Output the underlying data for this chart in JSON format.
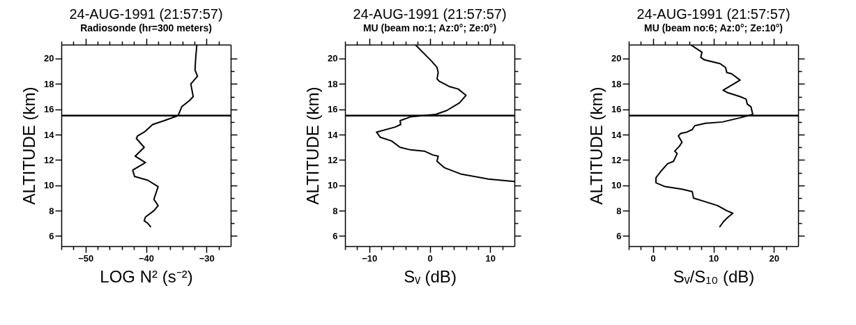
{
  "chart_data": [
    {
      "type": "line",
      "title": "24-AUG-1991 (21:57:57)",
      "subtitle": "Radiosonde (hr=300 meters)",
      "xlabel": "LOG N² (s⁻²)",
      "ylabel": "ALTITUDE (km)",
      "xlim": [
        -54,
        -26
      ],
      "ylim": [
        5.2,
        21.1
      ],
      "xticks": [
        {
          "value": -54,
          "label": null
        },
        {
          "value": -52,
          "label": null
        },
        -50,
        {
          "value": -48,
          "label": null
        },
        {
          "value": -46,
          "label": null
        },
        {
          "value": -44,
          "label": null
        },
        {
          "value": -42,
          "label": null
        },
        -40,
        {
          "value": -38,
          "label": null
        },
        {
          "value": -36,
          "label": null
        },
        {
          "value": -34,
          "label": null
        },
        {
          "value": -32,
          "label": null
        },
        -30,
        {
          "value": -28,
          "label": null
        }
      ],
      "yticks": [
        6,
        {
          "value": 7,
          "label": null
        },
        8,
        {
          "value": 9,
          "label": null
        },
        10,
        {
          "value": 11,
          "label": null
        },
        12,
        {
          "value": 13,
          "label": null
        },
        14,
        {
          "value": 15,
          "label": null
        },
        16,
        {
          "value": 17,
          "label": null
        },
        18,
        {
          "value": 19,
          "label": null
        },
        20
      ],
      "series": [
        {
          "color": "#000000",
          "x": [
            -31.6,
            -31.8,
            -31.9,
            -31.5,
            -32.6,
            -32.2,
            -32.8,
            -34.1,
            -34.7,
            -37.0,
            -38.9,
            -40.3,
            -41.4,
            -41.6,
            -40.3,
            -41.8,
            -40.1,
            -42.2,
            -41.9,
            -39.7,
            -38.0,
            -38.7,
            -38.0,
            -38.7,
            -40.1,
            -40.3,
            -39.7,
            -39.2
          ],
          "values": [
            21.1,
            20.0,
            19.1,
            18.6,
            18.0,
            17.0,
            16.7,
            16.2,
            15.5,
            15.1,
            14.8,
            14.2,
            13.9,
            13.7,
            13.0,
            12.3,
            11.8,
            11.2,
            10.7,
            10.4,
            9.9,
            8.9,
            8.4,
            8.0,
            7.5,
            7.2,
            7.0,
            6.7
          ]
        }
      ],
      "ref_lines": [
        {
          "axis": "y",
          "value": 15.5,
          "color": "#000000"
        }
      ]
    },
    {
      "type": "line",
      "title": "24-AUG-1991 (21:57:57)",
      "subtitle": "MU (beam no:1; Az:0°; Ze:0°)",
      "xlabel": "Sᵥ (dB)",
      "ylabel": "ALTITUDE (km)",
      "xlim": [
        -14,
        14
      ],
      "ylim": [
        5.2,
        21.1
      ],
      "xticks": [
        {
          "value": -14,
          "label": null
        },
        {
          "value": -12,
          "label": null
        },
        -10,
        {
          "value": -8,
          "label": null
        },
        {
          "value": -6,
          "label": null
        },
        {
          "value": -4,
          "label": null
        },
        {
          "value": -2,
          "label": null
        },
        0,
        {
          "value": 2,
          "label": null
        },
        {
          "value": 4,
          "label": null
        },
        {
          "value": 6,
          "label": null
        },
        {
          "value": 8,
          "label": null
        },
        10,
        {
          "value": 12,
          "label": null
        }
      ],
      "yticks": [
        6,
        {
          "value": 7,
          "label": null
        },
        8,
        {
          "value": 9,
          "label": null
        },
        10,
        {
          "value": 11,
          "label": null
        },
        12,
        {
          "value": 13,
          "label": null
        },
        14,
        {
          "value": 15,
          "label": null
        },
        16,
        {
          "value": 17,
          "label": null
        },
        18,
        {
          "value": 19,
          "label": null
        },
        20
      ],
      "series": [
        {
          "color": "#000000",
          "x": [
            -2.4,
            0.3,
            1.2,
            1.4,
            1.2,
            1.6,
            3.2,
            4.7,
            6.0,
            4.9,
            2.8,
            1.0,
            -3.2,
            -4.9,
            -4.8,
            -5.7,
            -8.8,
            -8.2,
            -6.3,
            -4.9,
            -3.2,
            -0.9,
            0.5,
            1.4,
            1.2,
            2.4,
            5.1,
            9.7,
            14.0
          ],
          "values": [
            21.1,
            19.8,
            19.3,
            18.9,
            18.4,
            18.2,
            17.8,
            17.6,
            17.1,
            16.5,
            15.9,
            15.6,
            15.4,
            15.1,
            14.8,
            14.6,
            14.2,
            13.8,
            13.5,
            13.0,
            12.8,
            12.7,
            12.4,
            12.3,
            11.9,
            11.4,
            10.9,
            10.5,
            10.3
          ]
        }
      ],
      "ref_lines": [
        {
          "axis": "y",
          "value": 15.5,
          "color": "#000000"
        }
      ]
    },
    {
      "type": "line",
      "title": "24-AUG-1991 (21:57:57)",
      "subtitle": "MU (beam no:6; Az:0°; Ze:10°)",
      "xlabel": "Sᵥ/S₁₀ (dB)",
      "ylabel": "ALTITUDE (km)",
      "xlim": [
        -4,
        24
      ],
      "ylim": [
        5.2,
        21.1
      ],
      "xticks": [
        {
          "value": -4,
          "label": null
        },
        {
          "value": -2,
          "label": null
        },
        0,
        {
          "value": 2,
          "label": null
        },
        {
          "value": 4,
          "label": null
        },
        {
          "value": 6,
          "label": null
        },
        {
          "value": 8,
          "label": null
        },
        10,
        {
          "value": 12,
          "label": null
        },
        {
          "value": 14,
          "label": null
        },
        {
          "value": 16,
          "label": null
        },
        {
          "value": 18,
          "label": null
        },
        20,
        {
          "value": 22,
          "label": null
        }
      ],
      "yticks": [
        6,
        {
          "value": 7,
          "label": null
        },
        8,
        {
          "value": 9,
          "label": null
        },
        10,
        {
          "value": 11,
          "label": null
        },
        12,
        {
          "value": 13,
          "label": null
        },
        14,
        {
          "value": 15,
          "label": null
        },
        16,
        {
          "value": 17,
          "label": null
        },
        18,
        {
          "value": 19,
          "label": null
        },
        20
      ],
      "series": [
        {
          "color": "#000000",
          "x": [
            6.2,
            8.1,
            7.9,
            8.5,
            11.1,
            12.0,
            12.2,
            13.0,
            14.4,
            11.6,
            12.4,
            14.4,
            15.4,
            15.6,
            16.2,
            16.5,
            15.0,
            11.5,
            8.7,
            6.9,
            6.5,
            5.6,
            4.6,
            4.2,
            4.8,
            4.4,
            3.6,
            4.0,
            3.4,
            2.4,
            1.3,
            0.5,
            0.5,
            2.0,
            4.8,
            6.5,
            6.7,
            8.7,
            10.7,
            12.2,
            13.2,
            12.2,
            11.6,
            11.0
          ],
          "values": [
            21.1,
            20.5,
            20.1,
            19.9,
            19.6,
            19.3,
            18.9,
            18.8,
            18.3,
            17.5,
            17.3,
            17.0,
            16.8,
            16.4,
            16.2,
            15.6,
            15.4,
            15.0,
            14.9,
            14.7,
            14.4,
            14.2,
            14.1,
            13.9,
            13.4,
            13.1,
            12.7,
            12.5,
            11.9,
            11.7,
            11.1,
            10.6,
            10.2,
            9.9,
            9.7,
            9.5,
            9.0,
            8.7,
            8.4,
            8.0,
            7.8,
            7.4,
            7.1,
            6.7
          ]
        }
      ],
      "ref_lines": [
        {
          "axis": "y",
          "value": 15.5,
          "color": "#000000"
        }
      ]
    }
  ]
}
